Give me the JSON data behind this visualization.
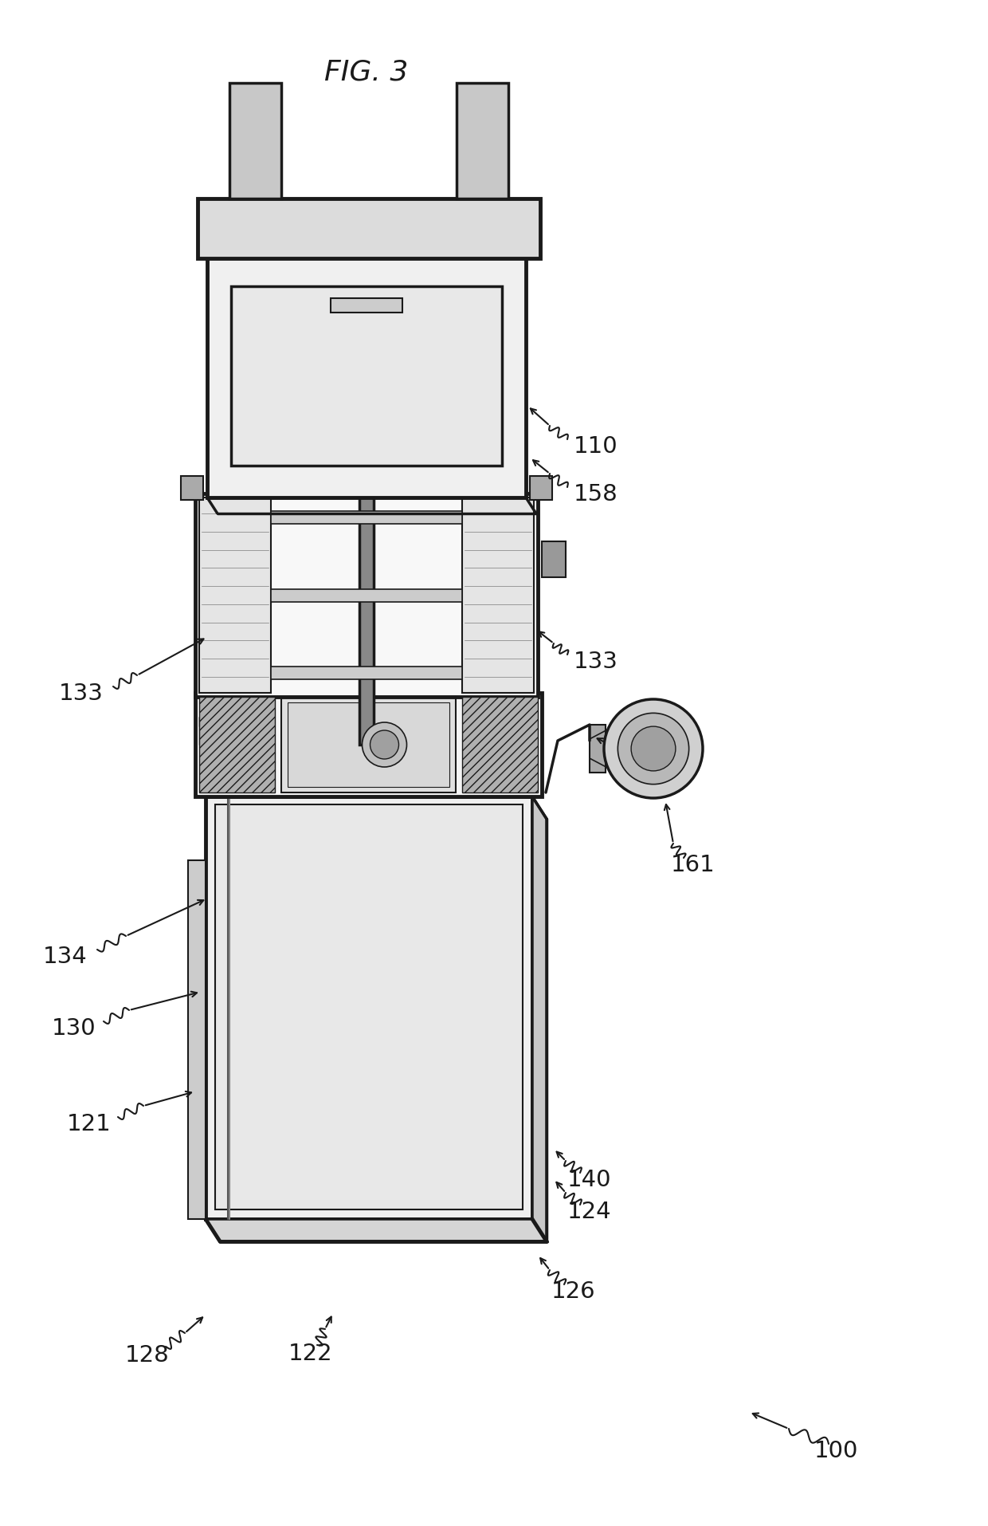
{
  "figure_label": "FIG. 3",
  "background_color": "#ffffff",
  "line_color": "#1a1a1a",
  "fig_width": 12.4,
  "fig_height": 19.15
}
